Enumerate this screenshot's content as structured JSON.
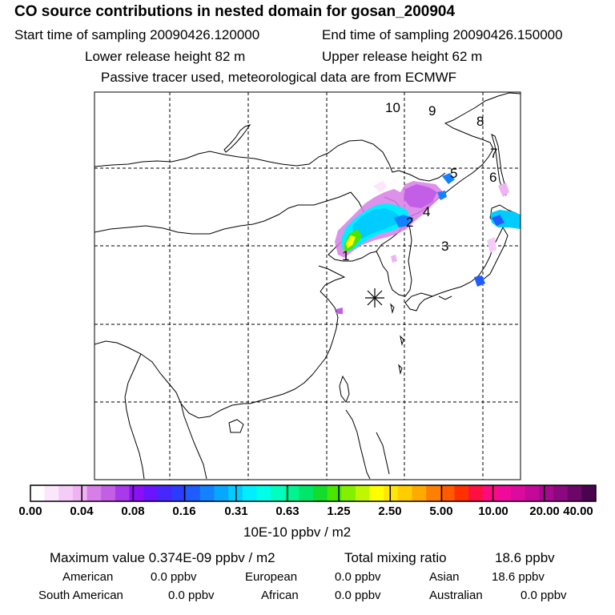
{
  "title": "CO  source contributions in nested domain for gosan_200904",
  "sampling": {
    "start_label": "Start time of sampling 20090426.120000",
    "end_label": "End time of sampling 20090426.150000"
  },
  "release": {
    "lower_label": "Lower release height   82 m",
    "upper_label": "Upper release height   62 m"
  },
  "tracer_note": "Passive tracer used, meteorological data are from ECMWF",
  "map": {
    "trajectory_labels": [
      "1",
      "2",
      "3",
      "4",
      "5",
      "6",
      "7",
      "8",
      "9",
      "10"
    ],
    "receptor_marker": "asterisk",
    "grid": "dashed"
  },
  "colorbar": {
    "tick_labels": [
      "0.00",
      "0.04",
      "0.08",
      "0.16",
      "0.31",
      "0.63",
      "1.25",
      "2.50",
      "5.00",
      "10.00",
      "20.00",
      "40.00"
    ],
    "units": "10E-10 ppbv / m2",
    "colors": [
      "#ffffff",
      "#fbe6fb",
      "#f5ccf5",
      "#efb2f2",
      "#d77ee8",
      "#c35fe6",
      "#a83aec",
      "#8b10f5",
      "#6a14ff",
      "#4628ff",
      "#2a3cff",
      "#1e5cff",
      "#1282ff",
      "#06a8ff",
      "#00ccff",
      "#00eeff",
      "#00ffe6",
      "#00ffbe",
      "#00f590",
      "#00e668",
      "#12dc2c",
      "#4ae600",
      "#82f000",
      "#c0f600",
      "#ffff00",
      "#ffe600",
      "#ffcc00",
      "#ffaa00",
      "#ff8000",
      "#ff5a00",
      "#ff3000",
      "#ff1040",
      "#ff0a80",
      "#f00a9c",
      "#dc0a9e",
      "#c4089a",
      "#a80890",
      "#8c0880",
      "#6c0668",
      "#4a044e"
    ]
  },
  "summary": {
    "max_label": "Maximum value  0.374E-09 ppbv / m2",
    "total_label": "Total mixing ratio",
    "total_value": "18.6 ppbv"
  },
  "regions": [
    {
      "name": "American",
      "value": "0.0 ppbv"
    },
    {
      "name": "European",
      "value": "0.0 ppbv"
    },
    {
      "name": "Asian",
      "value": "18.6 ppbv"
    },
    {
      "name": "South American",
      "value": "0.0 ppbv"
    },
    {
      "name": "African",
      "value": "0.0 ppbv"
    },
    {
      "name": "Australian",
      "value": "0.0 ppbv"
    }
  ]
}
